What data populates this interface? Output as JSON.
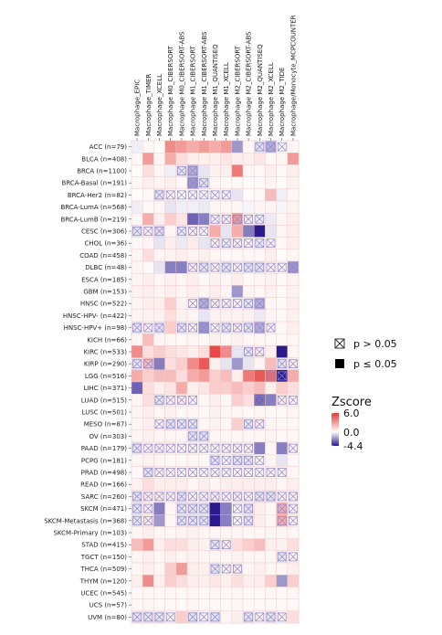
{
  "chart_data": {
    "type": "heatmap",
    "columns": [
      "Macrophage_EPIC",
      "Macrophage_TIMER",
      "Macrophage_XCELL",
      "Macrophage M0_CIBERSORT",
      "Macrophage M0_CIBERSORT-ABS",
      "Macrophage M1_CIBERSORT",
      "Macrophage M1_CIBERSORT-ABS",
      "Macrophage M1_QUANTISEQ",
      "Macrophage M1_XCELL",
      "Macrophage M2_CIBERSORT",
      "Macrophage M2_CIBERSORT-ABS",
      "Macrophage M2_QUANTISEQ",
      "Macrophage M2_XCELL",
      "Macrophage M2_TIDE",
      "Macrophage/Monocyte_MCPCOUNTER"
    ],
    "rows": [
      "ACC (n=79)",
      "BLCA (n=408)",
      "BRCA (n=1100)",
      "BRCA-Basal (n=191)",
      "BRCA-Her2 (n=82)",
      "BRCA-LumA (n=568)",
      "BRCA-LumB (n=219)",
      "CESC (n=306)",
      "CHOL (n=36)",
      "COAD (n=458)",
      "DLBC (n=48)",
      "ESCA (n=185)",
      "GBM (n=153)",
      "HNSC (n=522)",
      "HNSC-HPV- (n=422)",
      "HNSC-HPV+ (n=98)",
      "KICH (n=66)",
      "KIRC (n=533)",
      "KIRP (n=290)",
      "LGG (n=516)",
      "LIHC (n=371)",
      "LUAD (n=515)",
      "LUSC (n=501)",
      "MESO (n=87)",
      "OV (n=303)",
      "PAAD (n=179)",
      "PCPG (n=181)",
      "PRAD (n=498)",
      "READ (n=166)",
      "SARC (n=260)",
      "SKCM (n=471)",
      "SKCM-Metastasis (n=368)",
      "SKCM-Primary (n=103)",
      "STAD (n=415)",
      "TGCT (n=150)",
      "THCA (n=509)",
      "THYM (n=120)",
      "UCEC (n=545)",
      "UCS (n=57)",
      "UVM (n=80)"
    ],
    "values": [
      [
        -0.3,
        0.2,
        0.1,
        3.5,
        3.0,
        2.5,
        3.0,
        2.5,
        3.0,
        -2.0,
        0.3,
        -0.5,
        -1.5,
        0.0,
        0.3
      ],
      [
        0.2,
        3.0,
        0.3,
        2.5,
        1.0,
        0.5,
        0.5,
        0.5,
        0.8,
        0.5,
        0.5,
        0.8,
        0.2,
        0.3,
        3.0
      ],
      [
        0.1,
        1.0,
        0.3,
        -0.3,
        -0.5,
        -1.5,
        -0.5,
        0.4,
        0.5,
        4.0,
        0.3,
        0.2,
        0.5,
        0.2,
        0.5
      ],
      [
        0.2,
        0.5,
        0.3,
        0.5,
        0.2,
        -2.0,
        -0.5,
        0.3,
        0.2,
        0.2,
        0.1,
        0.2,
        0.3,
        0.1,
        0.4
      ],
      [
        0.1,
        0.2,
        -0.5,
        0.3,
        0.1,
        0.2,
        0.1,
        0.2,
        0.3,
        -0.5,
        0.1,
        0.2,
        2.0,
        -0.3,
        0.3
      ],
      [
        -0.3,
        0.2,
        0.3,
        -0.5,
        -0.3,
        -0.3,
        -0.4,
        0.3,
        0.3,
        0.3,
        -0.2,
        0.3,
        0.3,
        -0.2,
        0.4
      ],
      [
        0.3,
        2.5,
        0.5,
        1.5,
        0.8,
        -3.0,
        -2.5,
        0.5,
        0.5,
        3.0,
        0.5,
        -0.3,
        -0.4,
        0.3,
        0.5
      ],
      [
        -0.5,
        0.4,
        -0.6,
        0.3,
        -0.4,
        0.4,
        0.3,
        2.5,
        -0.5,
        2.5,
        -2.5,
        -4.4,
        -0.5,
        0.3,
        0.5
      ],
      [
        0.2,
        0.3,
        -0.5,
        0.5,
        -0.4,
        0.6,
        -0.5,
        0.4,
        -0.3,
        0.5,
        0.3,
        -0.3,
        0.2,
        0.2,
        0.5
      ],
      [
        0.3,
        1.0,
        0.3,
        0.4,
        0.5,
        0.3,
        0.5,
        0.3,
        0.2,
        0.2,
        0.3,
        0.2,
        0.5,
        0.1,
        0.3
      ],
      [
        0.3,
        0.2,
        -0.5,
        -2.5,
        -2.5,
        0.5,
        -0.5,
        0.4,
        -0.5,
        0.4,
        -0.5,
        -0.5,
        0.3,
        0.2,
        -2.0
      ],
      [
        0.3,
        0.5,
        0.3,
        0.4,
        0.3,
        0.5,
        0.2,
        0.4,
        0.3,
        0.5,
        0.2,
        0.3,
        0.4,
        0.2,
        0.4
      ],
      [
        0.4,
        0.5,
        0.3,
        0.5,
        0.3,
        0.5,
        0.3,
        0.5,
        0.3,
        -2.0,
        0.3,
        0.3,
        0.4,
        0.2,
        0.4
      ],
      [
        0.3,
        0.5,
        0.5,
        1.5,
        0.4,
        0.3,
        -1.5,
        0.5,
        0.4,
        0.4,
        -0.5,
        -1.5,
        0.3,
        0.2,
        0.5
      ],
      [
        0.3,
        0.4,
        0.4,
        1.0,
        0.4,
        0.3,
        -0.5,
        0.4,
        0.4,
        0.4,
        0.4,
        -0.4,
        0.3,
        0.2,
        0.4
      ],
      [
        -0.5,
        0.3,
        -0.5,
        1.5,
        -0.5,
        0.3,
        -2.0,
        0.3,
        -0.5,
        0.5,
        -0.5,
        -1.5,
        0.3,
        0.2,
        0.5
      ],
      [
        0.3,
        2.0,
        0.3,
        0.3,
        0.2,
        0.3,
        0.2,
        0.4,
        0.3,
        0.4,
        0.2,
        0.3,
        0.2,
        0.2,
        0.3
      ],
      [
        3.5,
        1.0,
        1.5,
        1.0,
        0.8,
        0.5,
        1.0,
        5.5,
        3.5,
        -0.5,
        -0.5,
        0.5,
        0.5,
        -4.4,
        0.3
      ],
      [
        -0.5,
        2.0,
        -2.5,
        1.0,
        1.5,
        3.5,
        5.0,
        0.5,
        -0.5,
        -2.0,
        -0.5,
        0.3,
        2.0,
        -0.5,
        0.5
      ],
      [
        2.5,
        1.5,
        2.0,
        2.0,
        1.0,
        2.5,
        3.0,
        1.5,
        2.0,
        0.5,
        4.0,
        5.0,
        4.5,
        -4.4,
        2.5
      ],
      [
        -3.0,
        1.0,
        0.5,
        0.8,
        2.5,
        0.5,
        0.8,
        1.5,
        1.5,
        2.0,
        1.5,
        2.0,
        0.5,
        1.5,
        1.0
      ],
      [
        0.3,
        1.0,
        -0.5,
        0.4,
        0.5,
        0.3,
        0.3,
        0.5,
        0.3,
        1.5,
        1.0,
        -3.0,
        -2.5,
        0.5,
        0.3
      ],
      [
        0.3,
        0.5,
        0.3,
        0.4,
        0.2,
        0.3,
        0.2,
        0.4,
        0.3,
        0.3,
        0.2,
        0.3,
        0.2,
        0.2,
        0.3
      ],
      [
        0.3,
        0.5,
        0.3,
        -0.5,
        -0.5,
        -0.5,
        0.3,
        0.4,
        0.3,
        1.5,
        -0.5,
        0.5,
        0.3,
        0.3,
        0.3
      ],
      [
        0.3,
        0.4,
        0.3,
        0.3,
        0.3,
        -0.5,
        -0.5,
        0.3,
        0.3,
        0.3,
        0.3,
        0.3,
        0.3,
        0.2,
        0.3
      ],
      [
        -0.5,
        0.3,
        0.4,
        0.3,
        0.2,
        0.3,
        0.2,
        0.3,
        0.3,
        0.4,
        0.3,
        -2.5,
        0.3,
        -2.5,
        0.3
      ],
      [
        0.3,
        0.4,
        0.3,
        0.2,
        0.2,
        0.3,
        0.2,
        -0.5,
        0.2,
        -0.5,
        -0.5,
        0.2,
        0.3,
        -0.5,
        0.2
      ],
      [
        0.2,
        -0.5,
        0.3,
        0.2,
        0.2,
        0.3,
        0.2,
        0.3,
        0.3,
        0.3,
        0.2,
        0.2,
        0.3,
        0.2,
        0.3
      ],
      [
        0.4,
        1.0,
        0.5,
        0.5,
        0.5,
        0.3,
        0.5,
        0.3,
        0.5,
        0.5,
        0.5,
        0.5,
        0.5,
        0.3,
        0.5
      ],
      [
        -0.5,
        0.4,
        0.5,
        0.3,
        -0.5,
        0.3,
        0.3,
        0.5,
        0.3,
        0.5,
        0.3,
        -0.5,
        -0.5,
        0.3,
        0.4
      ],
      [
        -0.5,
        0.5,
        -2.5,
        0.3,
        -0.5,
        -0.5,
        -0.5,
        -4.4,
        -2.5,
        0.3,
        -0.5,
        0.5,
        0.3,
        2.5,
        0.3
      ],
      [
        -0.5,
        0.5,
        -2.0,
        0.3,
        -0.5,
        -0.5,
        -0.5,
        -4.4,
        -2.5,
        0.3,
        -0.5,
        0.5,
        0.3,
        2.5,
        0.3
      ],
      [
        0.3,
        0.5,
        0.3,
        0.3,
        0.3,
        0.4,
        0.3,
        0.3,
        0.3,
        0.3,
        0.2,
        0.3,
        0.3,
        0.3,
        0.3
      ],
      [
        2.0,
        3.0,
        0.5,
        1.0,
        1.0,
        0.5,
        0.5,
        -0.5,
        0.4,
        1.0,
        1.5,
        2.0,
        0.5,
        0.4,
        1.0
      ],
      [
        0.3,
        0.5,
        0.3,
        0.5,
        0.3,
        0.4,
        0.3,
        0.3,
        0.3,
        0.4,
        0.3,
        0.3,
        0.3,
        -0.5,
        0.3
      ],
      [
        0.3,
        0.5,
        0.3,
        1.5,
        3.0,
        0.5,
        0.5,
        -0.5,
        0.3,
        0.5,
        0.3,
        0.5,
        0.3,
        0.3,
        0.5
      ],
      [
        0.5,
        3.5,
        0.5,
        1.5,
        1.0,
        0.5,
        0.5,
        0.8,
        0.5,
        1.0,
        0.5,
        0.5,
        1.5,
        -2.0,
        1.5
      ],
      [
        0.2,
        0.3,
        0.2,
        0.3,
        0.2,
        0.3,
        0.2,
        0.3,
        0.2,
        0.3,
        0.2,
        0.2,
        0.3,
        0.2,
        0.3
      ],
      [
        0.2,
        0.3,
        0.2,
        0.2,
        0.2,
        0.3,
        0.2,
        0.2,
        0.2,
        0.3,
        0.2,
        0.2,
        0.2,
        0.2,
        0.2
      ],
      [
        -0.5,
        -0.5,
        -0.5,
        0.3,
        1.5,
        -0.5,
        0.3,
        -0.5,
        0.3,
        0.5,
        -0.5,
        0.3,
        -0.5,
        0.3,
        1.0
      ]
    ],
    "not_significant": [
      [
        0,
        11,
        13
      ],
      [
        0,
        14,
        3
      ],
      [
        2,
        4,
        5
      ],
      [
        2,
        13,
        6
      ],
      [
        3,
        5,
        6
      ],
      [
        3,
        12,
        3
      ],
      [
        4,
        2,
        7
      ],
      [
        4,
        4,
        8
      ],
      [
        6,
        6,
        10
      ],
      [
        6,
        7,
        11
      ],
      [
        7,
        0,
        2
      ],
      [
        7,
        4,
        6
      ],
      [
        7,
        11,
        8
      ],
      [
        7,
        13,
        8
      ],
      [
        8,
        7,
        12
      ],
      [
        8,
        13,
        6
      ],
      [
        10,
        3,
        10
      ],
      [
        10,
        6,
        10
      ],
      [
        10,
        11,
        14
      ],
      [
        13,
        9,
        10
      ],
      [
        13,
        5,
        11
      ],
      [
        14,
        12,
        6
      ],
      [
        15,
        0,
        2
      ],
      [
        15,
        4,
        10
      ],
      [
        15,
        11,
        12
      ],
      [
        15,
        13,
        6
      ],
      [
        17,
        10,
        11
      ],
      [
        17,
        14,
        12
      ],
      [
        18,
        0,
        1
      ],
      [
        18,
        13,
        14
      ],
      [
        19,
        12,
        13
      ],
      [
        21,
        2,
        5
      ],
      [
        21,
        11,
        14
      ],
      [
        23,
        2,
        3
      ],
      [
        23,
        4,
        5
      ],
      [
        23,
        10,
        11
      ],
      [
        24,
        5,
        6
      ],
      [
        25,
        0,
        11
      ],
      [
        25,
        13,
        14
      ],
      [
        26,
        7,
        9
      ],
      [
        26,
        10,
        11
      ],
      [
        27,
        1,
        13
      ],
      [
        29,
        0,
        11
      ],
      [
        29,
        12,
        14
      ],
      [
        30,
        0,
        1
      ],
      [
        30,
        4,
        6
      ],
      [
        30,
        8,
        10
      ],
      [
        30,
        13,
        14
      ],
      [
        31,
        0,
        1
      ],
      [
        31,
        4,
        6
      ],
      [
        31,
        8,
        10
      ],
      [
        31,
        13,
        14
      ],
      [
        33,
        7,
        8
      ],
      [
        34,
        13,
        14
      ],
      [
        35,
        7,
        9
      ],
      [
        39,
        0,
        1
      ],
      [
        39,
        2,
        3
      ],
      [
        39,
        5,
        7
      ],
      [
        39,
        10,
        11
      ],
      [
        39,
        12,
        13
      ]
    ],
    "colorbar": {
      "title": "Zscore",
      "max_label": "6.0",
      "mid_label": "0.0",
      "min_label": "-4.4",
      "max": 6.0,
      "min": -4.4
    },
    "colors": {
      "high": "#e53935",
      "low": "#2a1a8e",
      "mid": "#ffffff",
      "cross": "#8a83c8",
      "grid_line": "#f1c9c9"
    },
    "significance_legend": [
      {
        "symbol": "crossed-square",
        "label": "p > 0.05"
      },
      {
        "symbol": "filled-square",
        "label": "p ≤ 0.05"
      }
    ]
  }
}
